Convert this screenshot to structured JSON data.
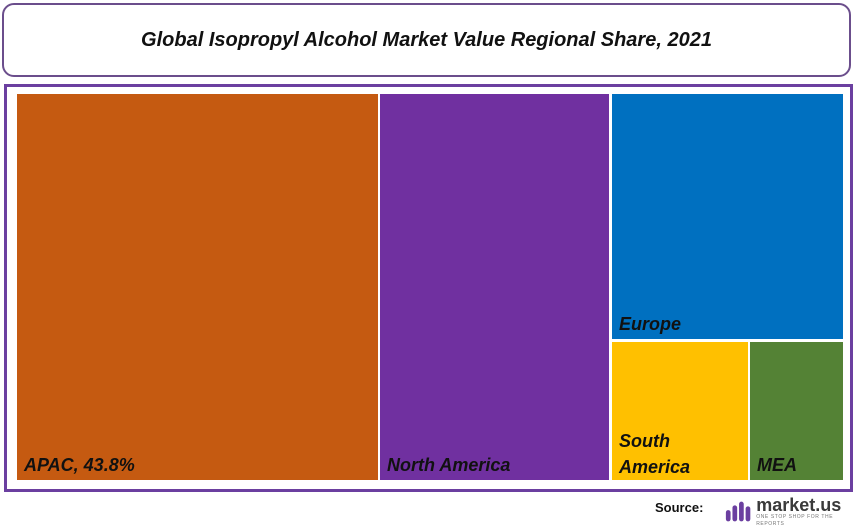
{
  "chart_data": {
    "type": "treemap",
    "title": "Global Isopropyl Alcohol Market Value Regional Share, 2021",
    "items": [
      {
        "label": "APAC, 43.8%",
        "name": "APAC",
        "share": 43.8,
        "color": "#c55a11"
      },
      {
        "label": "North America",
        "name": "North America",
        "share": 27.8,
        "color": "#7030a0"
      },
      {
        "label": "Europe",
        "name": "Europe",
        "share": 17.9,
        "color": "#0070c0"
      },
      {
        "label": "South America",
        "name": "South America",
        "share": 6.3,
        "color": "#ffc000"
      },
      {
        "label": "MEA",
        "name": "MEA",
        "share": 4.2,
        "color": "#548235"
      }
    ]
  },
  "footer": {
    "source_label": "Source:",
    "logo_name": "market.us",
    "logo_tagline": "ONE STOP SHOP FOR THE REPORTS",
    "logo_color": "#6b3fa0"
  }
}
